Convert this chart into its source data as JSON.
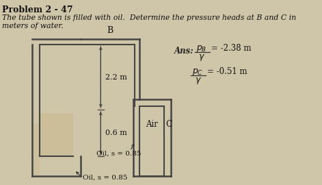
{
  "title": "Problem 2 - 47",
  "problem_text_line1": "The tube shown is filled with oil.  Determine the pressure heads at B and C in",
  "problem_text_line2": "meters of water.",
  "background_color": "#cfc5a8",
  "tube_color": "#444444",
  "air_label": "Air",
  "C_label": "C",
  "B_label": "B",
  "dim_22": "2.2 m",
  "dim_06": "0.6 m",
  "oil_label1": "Oil, s = 0.85",
  "oil_label2": "Oil, s = 0.85",
  "ans_text": "Ans:",
  "pB_num": "p",
  "pB_sub": "B",
  "pB_val": "= -2.38 m",
  "pC_num": "p",
  "pC_sub": "C",
  "pC_val": "= -0.51 m",
  "gamma": "γ"
}
